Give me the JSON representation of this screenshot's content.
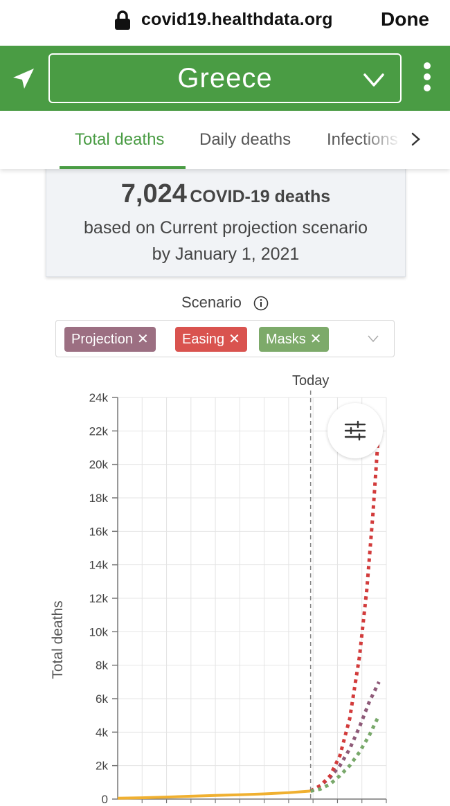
{
  "browser": {
    "url": "covid19.healthdata.org",
    "done_label": "Done"
  },
  "header": {
    "location_value": "Greece",
    "locate_icon": "location-arrow-icon",
    "menu_icon": "more-vertical-icon",
    "bg_color": "#4a9c44"
  },
  "tabs": [
    {
      "label": "Total deaths",
      "active": true
    },
    {
      "label": "Daily deaths",
      "active": false
    },
    {
      "label": "Infections",
      "active": false
    }
  ],
  "summary": {
    "number": "7,024",
    "number_label": "COVID-19 deaths",
    "line2": "based on Current projection scenario",
    "line3": "by January 1, 2021"
  },
  "scenario": {
    "label": "Scenario",
    "chips": [
      {
        "label": "Projection",
        "color": "#9c6f82"
      },
      {
        "label": "Easing",
        "color": "#d9534f"
      },
      {
        "label": "Masks",
        "color": "#7daa6a"
      }
    ]
  },
  "chart_data": {
    "type": "line",
    "ylabel": "Total deaths",
    "today_label": "Today",
    "ylim": [
      0,
      24000
    ],
    "yticks": [
      "0",
      "2k",
      "4k",
      "6k",
      "8k",
      "10k",
      "12k",
      "14k",
      "16k",
      "18k",
      "20k",
      "22k",
      "24k"
    ],
    "grid": true,
    "x_period_count": 11,
    "today_index": 7.9,
    "series": [
      {
        "style": "observed",
        "color": "#f0b030",
        "x": [
          0,
          1,
          2,
          3,
          4,
          5,
          6,
          7,
          7.9
        ],
        "y": [
          50,
          80,
          120,
          170,
          220,
          260,
          310,
          380,
          480
        ]
      },
      {
        "name": "Projection",
        "style": "dotted",
        "color": "#8e5a78",
        "x": [
          7.9,
          8.3,
          8.7,
          9.1,
          9.5,
          9.9,
          10.3,
          10.7
        ],
        "y": [
          480,
          800,
          1300,
          2000,
          3000,
          4300,
          5800,
          7000
        ]
      },
      {
        "name": "Easing",
        "style": "dotted",
        "color": "#d23b3b",
        "x": [
          7.9,
          8.3,
          8.7,
          9.1,
          9.5,
          9.9,
          10.2,
          10.45,
          10.7
        ],
        "y": [
          480,
          800,
          1400,
          2600,
          4800,
          8500,
          12500,
          17000,
          22300
        ]
      },
      {
        "name": "Masks",
        "style": "dotted",
        "color": "#78a86a",
        "x": [
          7.9,
          8.3,
          8.7,
          9.1,
          9.5,
          9.9,
          10.3,
          10.7
        ],
        "y": [
          480,
          600,
          900,
          1400,
          2000,
          2800,
          3800,
          5000
        ]
      }
    ]
  }
}
